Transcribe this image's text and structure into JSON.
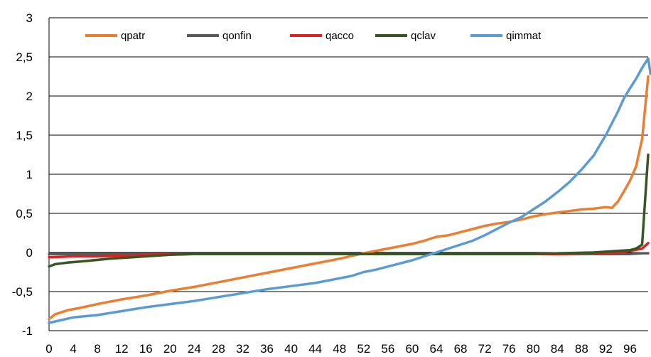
{
  "chart_data": {
    "type": "line",
    "title": "",
    "xlabel": "",
    "ylabel": "",
    "ylim": [
      -1,
      3
    ],
    "yticks": [
      "-1",
      "-0,5",
      "0",
      "0,5",
      "1",
      "1,5",
      "2",
      "2,5",
      "3"
    ],
    "xlim": [
      0,
      99
    ],
    "xticks": [
      "0",
      "4",
      "8",
      "12",
      "16",
      "20",
      "24",
      "28",
      "32",
      "36",
      "40",
      "44",
      "48",
      "52",
      "56",
      "60",
      "64",
      "68",
      "72",
      "76",
      "80",
      "84",
      "88",
      "92",
      "96"
    ],
    "grid": "horizontal",
    "legend_position": "top",
    "series": [
      {
        "name": "qpatr",
        "color": "#ED7D31",
        "points": [
          [
            0,
            -0.85
          ],
          [
            1,
            -0.79
          ],
          [
            3,
            -0.74
          ],
          [
            5,
            -0.71
          ],
          [
            8,
            -0.66
          ],
          [
            12,
            -0.6
          ],
          [
            16,
            -0.55
          ],
          [
            20,
            -0.49
          ],
          [
            24,
            -0.44
          ],
          [
            28,
            -0.38
          ],
          [
            32,
            -0.32
          ],
          [
            36,
            -0.26
          ],
          [
            40,
            -0.2
          ],
          [
            44,
            -0.14
          ],
          [
            48,
            -0.08
          ],
          [
            52,
            -0.01
          ],
          [
            56,
            0.05
          ],
          [
            60,
            0.11
          ],
          [
            62,
            0.15
          ],
          [
            64,
            0.2
          ],
          [
            66,
            0.22
          ],
          [
            68,
            0.26
          ],
          [
            70,
            0.3
          ],
          [
            72,
            0.34
          ],
          [
            74,
            0.37
          ],
          [
            76,
            0.39
          ],
          [
            78,
            0.42
          ],
          [
            80,
            0.46
          ],
          [
            82,
            0.49
          ],
          [
            84,
            0.51
          ],
          [
            86,
            0.53
          ],
          [
            88,
            0.55
          ],
          [
            90,
            0.56
          ],
          [
            92,
            0.58
          ],
          [
            93,
            0.57
          ],
          [
            94,
            0.65
          ],
          [
            95,
            0.78
          ],
          [
            96,
            0.92
          ],
          [
            97,
            1.1
          ],
          [
            98,
            1.45
          ],
          [
            99,
            2.25
          ]
        ]
      },
      {
        "name": "qonfin",
        "color": "#595959",
        "points": [
          [
            0,
            -0.02
          ],
          [
            20,
            -0.02
          ],
          [
            40,
            -0.02
          ],
          [
            60,
            -0.02
          ],
          [
            80,
            -0.02
          ],
          [
            96,
            -0.02
          ],
          [
            98,
            -0.01
          ],
          [
            99,
            -0.01
          ]
        ]
      },
      {
        "name": "qacco",
        "color": "#E02020",
        "points": [
          [
            0,
            -0.06
          ],
          [
            4,
            -0.05
          ],
          [
            8,
            -0.05
          ],
          [
            12,
            -0.04
          ],
          [
            16,
            -0.03
          ],
          [
            20,
            -0.02
          ],
          [
            30,
            -0.02
          ],
          [
            50,
            -0.02
          ],
          [
            70,
            -0.02
          ],
          [
            84,
            -0.02
          ],
          [
            90,
            -0.01
          ],
          [
            94,
            0.0
          ],
          [
            96,
            0.02
          ],
          [
            98,
            0.05
          ],
          [
            99,
            0.12
          ]
        ]
      },
      {
        "name": "qclav",
        "color": "#375623",
        "points": [
          [
            0,
            -0.18
          ],
          [
            1,
            -0.15
          ],
          [
            3,
            -0.13
          ],
          [
            6,
            -0.11
          ],
          [
            10,
            -0.08
          ],
          [
            14,
            -0.06
          ],
          [
            18,
            -0.04
          ],
          [
            20,
            -0.03
          ],
          [
            24,
            -0.02
          ],
          [
            40,
            -0.02
          ],
          [
            60,
            -0.02
          ],
          [
            80,
            -0.02
          ],
          [
            84,
            -0.01
          ],
          [
            90,
            0.0
          ],
          [
            94,
            0.02
          ],
          [
            96,
            0.03
          ],
          [
            97,
            0.05
          ],
          [
            98,
            0.1
          ],
          [
            99,
            1.25
          ]
        ]
      },
      {
        "name": "qimmat",
        "color": "#5B9BD5",
        "points": [
          [
            0,
            -0.9
          ],
          [
            4,
            -0.83
          ],
          [
            8,
            -0.8
          ],
          [
            12,
            -0.75
          ],
          [
            16,
            -0.7
          ],
          [
            20,
            -0.66
          ],
          [
            24,
            -0.62
          ],
          [
            28,
            -0.57
          ],
          [
            32,
            -0.52
          ],
          [
            36,
            -0.47
          ],
          [
            40,
            -0.43
          ],
          [
            44,
            -0.39
          ],
          [
            48,
            -0.33
          ],
          [
            50,
            -0.3
          ],
          [
            52,
            -0.25
          ],
          [
            54,
            -0.22
          ],
          [
            56,
            -0.18
          ],
          [
            60,
            -0.1
          ],
          [
            62,
            -0.05
          ],
          [
            64,
            0.0
          ],
          [
            66,
            0.05
          ],
          [
            68,
            0.1
          ],
          [
            70,
            0.15
          ],
          [
            72,
            0.22
          ],
          [
            74,
            0.3
          ],
          [
            76,
            0.38
          ],
          [
            78,
            0.45
          ],
          [
            80,
            0.55
          ],
          [
            82,
            0.65
          ],
          [
            84,
            0.77
          ],
          [
            86,
            0.9
          ],
          [
            88,
            1.06
          ],
          [
            90,
            1.24
          ],
          [
            92,
            1.5
          ],
          [
            94,
            1.8
          ],
          [
            95,
            1.97
          ],
          [
            96,
            2.1
          ],
          [
            97,
            2.22
          ],
          [
            98,
            2.36
          ],
          [
            99,
            2.48
          ],
          [
            99.4,
            2.28
          ]
        ]
      }
    ]
  }
}
